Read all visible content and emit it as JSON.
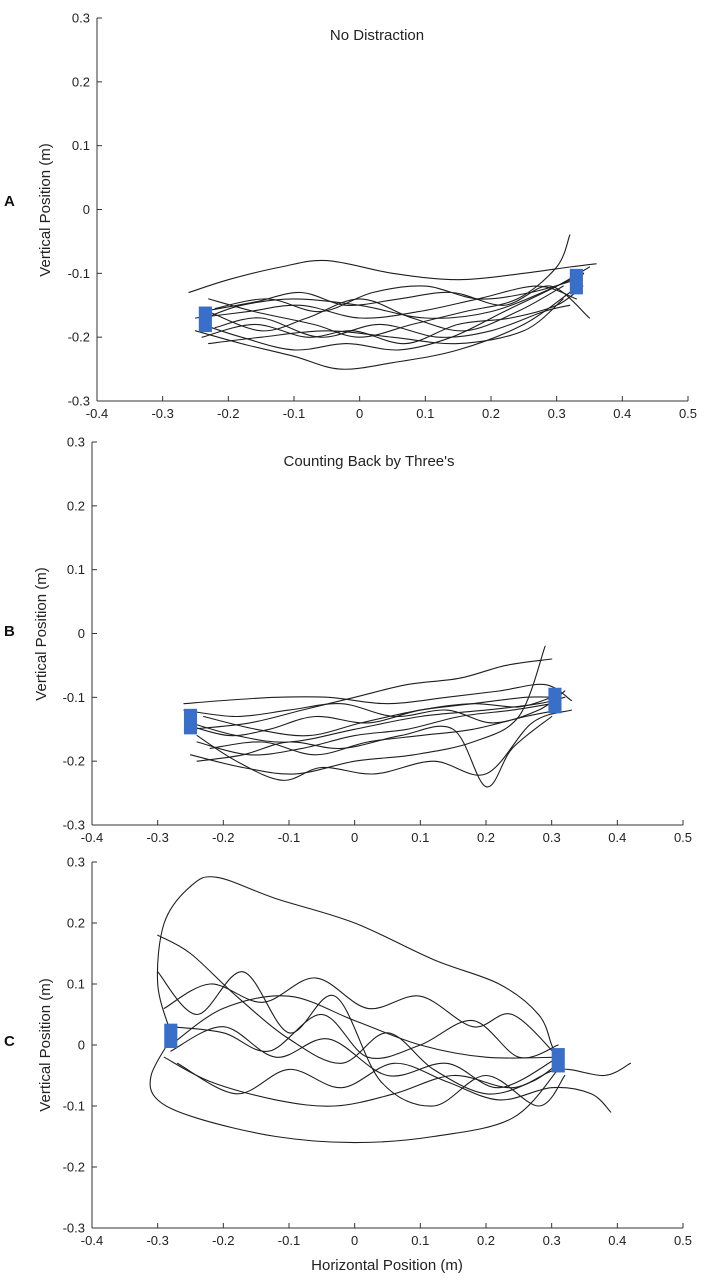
{
  "chart_data": [
    {
      "type": "line",
      "panel_label": "A",
      "title": "No Distraction",
      "xlabel": "",
      "ylabel": "Vertical Position (m)",
      "xlim": [
        -0.4,
        0.5
      ],
      "ylim": [
        -0.3,
        0.3
      ],
      "xticks": [
        "-0.4",
        "-0.3",
        "-0.2",
        "-0.1",
        "0",
        "0.1",
        "0.2",
        "0.3",
        "0.4",
        "0.5"
      ],
      "yticks": [
        "0.3",
        "0.2",
        "0.1",
        "0",
        "-0.1",
        "-0.2",
        "-0.3"
      ],
      "grid": false,
      "targets": [
        {
          "x": -0.235,
          "y": -0.172,
          "w": 0.02,
          "h": 0.04
        },
        {
          "x": 0.33,
          "y": -0.113,
          "w": 0.02,
          "h": 0.04
        }
      ],
      "target_color": "#3a6fc9",
      "series": [
        {
          "x": [
            -0.235,
            -0.18,
            -0.1,
            0.0,
            0.1,
            0.2,
            0.3,
            0.34,
            0.33
          ],
          "y": [
            -0.17,
            -0.15,
            -0.14,
            -0.15,
            -0.17,
            -0.16,
            -0.12,
            -0.1,
            -0.11
          ]
        },
        {
          "x": [
            -0.24,
            -0.18,
            -0.1,
            -0.02,
            0.06,
            0.14,
            0.22,
            0.3,
            0.35
          ],
          "y": [
            -0.18,
            -0.2,
            -0.22,
            -0.21,
            -0.22,
            -0.2,
            -0.16,
            -0.12,
            -0.09
          ]
        },
        {
          "x": [
            -0.26,
            -0.2,
            -0.12,
            -0.05,
            0.05,
            0.15,
            0.25,
            0.32,
            0.36
          ],
          "y": [
            -0.13,
            -0.11,
            -0.09,
            -0.08,
            -0.1,
            -0.11,
            -0.1,
            -0.09,
            -0.085
          ]
        },
        {
          "x": [
            -0.23,
            -0.15,
            -0.08,
            0.0,
            0.08,
            0.16,
            0.24,
            0.31
          ],
          "y": [
            -0.16,
            -0.19,
            -0.17,
            -0.14,
            -0.17,
            -0.19,
            -0.16,
            -0.12
          ]
        },
        {
          "x": [
            -0.25,
            -0.18,
            -0.1,
            -0.03,
            0.05,
            0.15,
            0.25,
            0.32
          ],
          "y": [
            -0.19,
            -0.21,
            -0.23,
            -0.25,
            -0.24,
            -0.22,
            -0.18,
            -0.13
          ]
        },
        {
          "x": [
            -0.22,
            -0.14,
            -0.06,
            0.02,
            0.1,
            0.18,
            0.26,
            0.33
          ],
          "y": [
            -0.155,
            -0.14,
            -0.16,
            -0.13,
            -0.12,
            -0.14,
            -0.13,
            -0.11
          ]
        },
        {
          "x": [
            -0.24,
            -0.16,
            -0.08,
            -0.01,
            0.07,
            0.15,
            0.23,
            0.3,
            0.34
          ],
          "y": [
            -0.2,
            -0.18,
            -0.2,
            -0.19,
            -0.21,
            -0.18,
            -0.17,
            -0.15,
            -0.12
          ]
        },
        {
          "x": [
            -0.23,
            -0.16,
            -0.07,
            0.0,
            0.08,
            0.16,
            0.24,
            0.3,
            0.32
          ],
          "y": [
            -0.14,
            -0.16,
            -0.18,
            -0.2,
            -0.18,
            -0.16,
            -0.14,
            -0.09,
            -0.04
          ]
        },
        {
          "x": [
            -0.25,
            -0.17,
            -0.09,
            0.0,
            0.09,
            0.18,
            0.27,
            0.33
          ],
          "y": [
            -0.17,
            -0.16,
            -0.15,
            -0.17,
            -0.16,
            -0.14,
            -0.12,
            -0.14
          ]
        },
        {
          "x": [
            -0.22,
            -0.15,
            -0.06,
            0.03,
            0.12,
            0.2,
            0.28,
            0.32
          ],
          "y": [
            -0.185,
            -0.17,
            -0.2,
            -0.18,
            -0.2,
            -0.19,
            -0.16,
            -0.15
          ]
        },
        {
          "x": [
            -0.24,
            -0.16,
            -0.09,
            -0.02,
            0.06,
            0.14,
            0.22,
            0.29,
            0.35
          ],
          "y": [
            -0.16,
            -0.145,
            -0.13,
            -0.15,
            -0.14,
            -0.13,
            -0.15,
            -0.12,
            -0.17
          ]
        },
        {
          "x": [
            -0.23,
            -0.15,
            -0.05,
            0.05,
            0.15,
            0.25,
            0.31
          ],
          "y": [
            -0.21,
            -0.2,
            -0.19,
            -0.2,
            -0.21,
            -0.19,
            -0.14
          ]
        }
      ]
    },
    {
      "type": "line",
      "panel_label": "B",
      "title": "Counting Back by Three's",
      "xlabel": "",
      "ylabel": "Vertical Position (m)",
      "xlim": [
        -0.4,
        0.5
      ],
      "ylim": [
        -0.3,
        0.3
      ],
      "xticks": [
        "-0.4",
        "-0.3",
        "-0.2",
        "-0.1",
        "0",
        "0.1",
        "0.2",
        "0.3",
        "0.4",
        "0.5"
      ],
      "yticks": [
        "0.3",
        "0.2",
        "0.1",
        "0",
        "-0.1",
        "-0.2",
        "-0.3"
      ],
      "grid": false,
      "targets": [
        {
          "x": -0.25,
          "y": -0.138,
          "w": 0.02,
          "h": 0.04
        },
        {
          "x": 0.305,
          "y": -0.105,
          "w": 0.02,
          "h": 0.04
        }
      ],
      "target_color": "#3a6fc9",
      "series": [
        {
          "x": [
            -0.25,
            -0.18,
            -0.1,
            0.0,
            0.1,
            0.2,
            0.28,
            0.32
          ],
          "y": [
            -0.14,
            -0.16,
            -0.17,
            -0.15,
            -0.13,
            -0.12,
            -0.11,
            -0.1
          ]
        },
        {
          "x": [
            -0.26,
            -0.2,
            -0.12,
            -0.04,
            0.05,
            0.14,
            0.22,
            0.29,
            0.33
          ],
          "y": [
            -0.11,
            -0.105,
            -0.1,
            -0.1,
            -0.11,
            -0.1,
            -0.09,
            -0.08,
            -0.105
          ]
        },
        {
          "x": [
            -0.24,
            -0.16,
            -0.08,
            0.0,
            0.08,
            0.16,
            0.24,
            0.3
          ],
          "y": [
            -0.17,
            -0.19,
            -0.18,
            -0.16,
            -0.15,
            -0.13,
            -0.12,
            -0.11
          ]
        },
        {
          "x": [
            -0.25,
            -0.17,
            -0.09,
            0.0,
            0.09,
            0.18,
            0.25,
            0.29
          ],
          "y": [
            -0.19,
            -0.21,
            -0.22,
            -0.2,
            -0.19,
            -0.17,
            -0.13,
            -0.02
          ]
        },
        {
          "x": [
            -0.23,
            -0.15,
            -0.07,
            0.01,
            0.1,
            0.18,
            0.26,
            0.31
          ],
          "y": [
            -0.13,
            -0.15,
            -0.16,
            -0.14,
            -0.12,
            -0.11,
            -0.1,
            -0.1
          ]
        },
        {
          "x": [
            -0.24,
            -0.18,
            -0.11,
            -0.05,
            0.03,
            0.12,
            0.2,
            0.27,
            0.33
          ],
          "y": [
            -0.16,
            -0.2,
            -0.23,
            -0.21,
            -0.22,
            -0.2,
            -0.22,
            -0.14,
            -0.12
          ]
        },
        {
          "x": [
            -0.25,
            -0.16,
            -0.08,
            0.0,
            0.08,
            0.16,
            0.23,
            0.3
          ],
          "y": [
            -0.15,
            -0.14,
            -0.12,
            -0.1,
            -0.08,
            -0.07,
            -0.05,
            -0.04
          ]
        },
        {
          "x": [
            -0.22,
            -0.14,
            -0.06,
            0.02,
            0.1,
            0.18,
            0.26,
            0.31
          ],
          "y": [
            -0.18,
            -0.17,
            -0.19,
            -0.17,
            -0.16,
            -0.15,
            -0.13,
            -0.12
          ]
        },
        {
          "x": [
            -0.26,
            -0.18,
            -0.1,
            -0.02,
            0.06,
            0.14,
            0.21,
            0.28,
            0.32
          ],
          "y": [
            -0.12,
            -0.13,
            -0.12,
            -0.11,
            -0.13,
            -0.12,
            -0.14,
            -0.12,
            -0.09
          ]
        },
        {
          "x": [
            -0.24,
            -0.17,
            -0.1,
            -0.02,
            0.07,
            0.15,
            0.2,
            0.24,
            0.3
          ],
          "y": [
            -0.2,
            -0.19,
            -0.17,
            -0.18,
            -0.16,
            -0.15,
            -0.24,
            -0.18,
            -0.13
          ]
        },
        {
          "x": [
            -0.25,
            -0.19,
            -0.13,
            -0.06,
            0.02,
            0.1,
            0.18,
            0.25,
            0.3
          ],
          "y": [
            -0.145,
            -0.16,
            -0.15,
            -0.13,
            -0.14,
            -0.12,
            -0.11,
            -0.115,
            -0.1
          ]
        }
      ]
    },
    {
      "type": "line",
      "panel_label": "C",
      "title": "",
      "xlabel": "Horizontal Position (m)",
      "ylabel": "Vertical Position (m)",
      "xlim": [
        -0.4,
        0.5
      ],
      "ylim": [
        -0.3,
        0.3
      ],
      "xticks": [
        "-0.4",
        "-0.3",
        "-0.2",
        "-0.1",
        "0",
        "0.1",
        "0.2",
        "0.3",
        "0.4",
        "0.5"
      ],
      "yticks": [
        "0.3",
        "0.2",
        "0.1",
        "0",
        "-0.1",
        "-0.2",
        "-0.3"
      ],
      "grid": false,
      "targets": [
        {
          "x": -0.28,
          "y": 0.015,
          "w": 0.02,
          "h": 0.04
        },
        {
          "x": 0.31,
          "y": -0.025,
          "w": 0.02,
          "h": 0.04
        }
      ],
      "target_color": "#3a6fc9",
      "series": [
        {
          "x": [
            -0.28,
            -0.3,
            -0.29,
            -0.25,
            -0.21,
            -0.12,
            0.0,
            0.12,
            0.22,
            0.28,
            0.3,
            0.31
          ],
          "y": [
            0.02,
            0.1,
            0.2,
            0.26,
            0.275,
            0.24,
            0.2,
            0.14,
            0.1,
            0.05,
            0.0,
            -0.03
          ]
        },
        {
          "x": [
            -0.28,
            -0.31,
            -0.3,
            -0.24,
            -0.12,
            0.0,
            0.12,
            0.24,
            0.31
          ],
          "y": [
            0.01,
            -0.05,
            -0.09,
            -0.12,
            -0.15,
            -0.16,
            -0.15,
            -0.12,
            -0.04
          ]
        },
        {
          "x": [
            -0.28,
            -0.2,
            -0.1,
            0.0,
            0.1,
            0.2,
            0.31
          ],
          "y": [
            0.0,
            0.06,
            0.08,
            0.04,
            0.0,
            -0.02,
            -0.02
          ]
        },
        {
          "x": [
            -0.29,
            -0.22,
            -0.12,
            -0.03,
            0.06,
            0.15,
            0.24,
            0.31,
            0.38,
            0.42
          ],
          "y": [
            -0.02,
            -0.06,
            -0.09,
            -0.1,
            -0.08,
            -0.05,
            -0.07,
            -0.04,
            -0.05,
            -0.03
          ]
        },
        {
          "x": [
            -0.3,
            -0.25,
            -0.18,
            -0.1,
            -0.02,
            0.05,
            0.12,
            0.2,
            0.27,
            0.31
          ],
          "y": [
            0.18,
            0.15,
            0.08,
            0.01,
            -0.03,
            0.02,
            -0.04,
            -0.08,
            -0.06,
            -0.03
          ]
        },
        {
          "x": [
            -0.28,
            -0.2,
            -0.13,
            -0.05,
            0.02,
            0.1,
            0.18,
            0.25,
            0.31
          ],
          "y": [
            0.03,
            0.02,
            -0.01,
            0.05,
            -0.02,
            0.0,
            0.04,
            -0.02,
            0.0
          ]
        },
        {
          "x": [
            -0.27,
            -0.18,
            -0.1,
            -0.02,
            0.06,
            0.14,
            0.22,
            0.3,
            0.36,
            0.39
          ],
          "y": [
            -0.03,
            -0.08,
            -0.04,
            -0.07,
            -0.03,
            -0.06,
            -0.09,
            -0.07,
            -0.08,
            -0.11
          ]
        },
        {
          "x": [
            -0.29,
            -0.22,
            -0.14,
            -0.06,
            0.02,
            0.1,
            0.18,
            0.24,
            0.31
          ],
          "y": [
            0.06,
            0.1,
            0.07,
            0.11,
            0.06,
            0.08,
            0.03,
            0.05,
            -0.02
          ]
        },
        {
          "x": [
            -0.28,
            -0.2,
            -0.12,
            -0.04,
            0.05,
            0.14,
            0.22,
            0.31
          ],
          "y": [
            -0.01,
            0.03,
            -0.02,
            0.01,
            -0.05,
            -0.03,
            -0.07,
            -0.02
          ]
        },
        {
          "x": [
            -0.3,
            -0.24,
            -0.17,
            -0.1,
            -0.03,
            0.04,
            0.12,
            0.2,
            0.28,
            0.32
          ],
          "y": [
            0.12,
            0.05,
            0.12,
            0.02,
            0.08,
            -0.06,
            -0.1,
            -0.05,
            -0.1,
            -0.05
          ]
        }
      ]
    }
  ]
}
